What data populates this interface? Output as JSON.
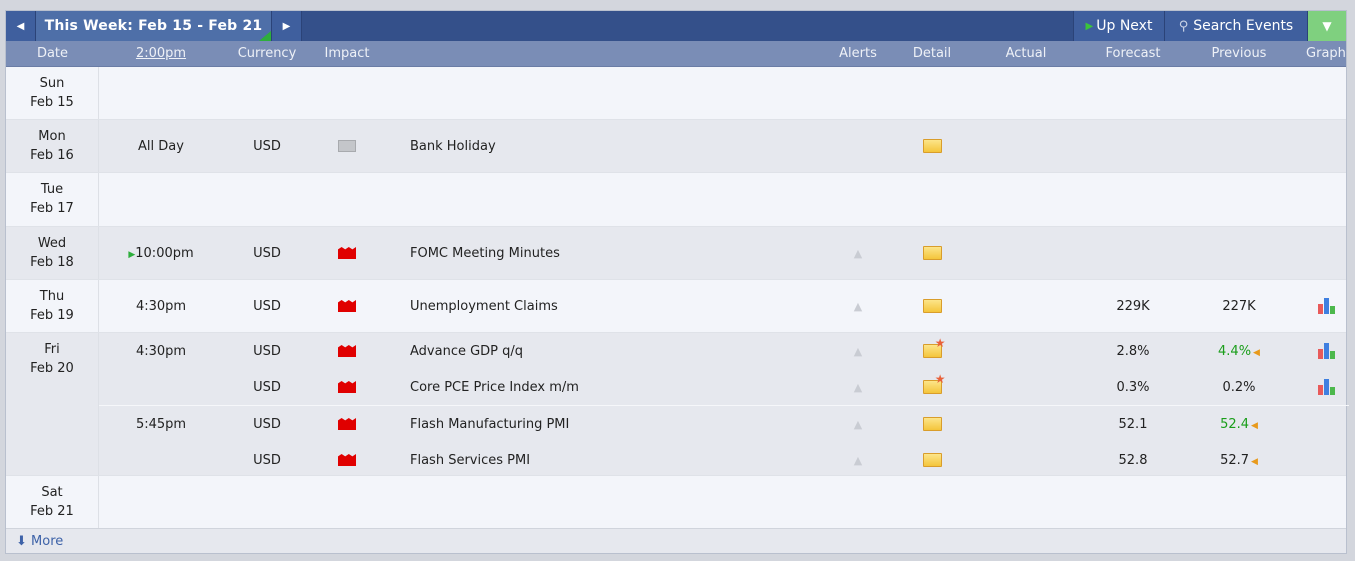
{
  "toolbar": {
    "week_label": "This Week: Feb 15 - Feb 21",
    "up_next": "Up Next",
    "search": "Search Events",
    "prev_icon": "triangle-left",
    "next_icon": "triangle-right",
    "filter_icon": "funnel"
  },
  "columns": [
    "Date",
    "2:00pm",
    "Currency",
    "Impact",
    "",
    "Alerts",
    "Detail",
    "Actual",
    "Forecast",
    "Previous",
    "Graph"
  ],
  "days": [
    {
      "dow": "Sun",
      "date": "Feb 15",
      "events": []
    },
    {
      "dow": "Mon",
      "date": "Feb 16",
      "events": [
        {
          "time": "All Day",
          "currency": "USD",
          "impact": "gray",
          "event": "Bank Holiday",
          "alert": false,
          "detail": "folder",
          "actual": "",
          "forecast": "",
          "previous": "",
          "prev_status": "",
          "graph": false
        }
      ]
    },
    {
      "dow": "Tue",
      "date": "Feb 17",
      "events": []
    },
    {
      "dow": "Wed",
      "date": "Feb 18",
      "events": [
        {
          "time": "10:00pm",
          "upnext": true,
          "currency": "USD",
          "impact": "red",
          "event": "FOMC Meeting Minutes",
          "alert": true,
          "detail": "folder",
          "actual": "",
          "forecast": "",
          "previous": "",
          "prev_status": "",
          "graph": false
        }
      ]
    },
    {
      "dow": "Thu",
      "date": "Feb 19",
      "events": [
        {
          "time": "4:30pm",
          "currency": "USD",
          "impact": "red",
          "event": "Unemployment Claims",
          "alert": true,
          "detail": "folder",
          "actual": "",
          "forecast": "229K",
          "previous": "227K",
          "prev_status": "",
          "graph": true
        }
      ]
    },
    {
      "dow": "Fri",
      "date": "Feb 20",
      "events": [
        {
          "time": "4:30pm",
          "currency": "USD",
          "impact": "red",
          "event": "Advance GDP q/q",
          "alert": true,
          "detail": "folder-star",
          "actual": "",
          "forecast": "2.8%",
          "previous": "4.4%",
          "prev_status": "revised-up",
          "graph": true
        },
        {
          "time": "",
          "currency": "USD",
          "impact": "red",
          "event": "Core PCE Price Index m/m",
          "alert": true,
          "detail": "folder-star",
          "actual": "",
          "forecast": "0.3%",
          "previous": "0.2%",
          "prev_status": "",
          "graph": true
        },
        {
          "time": "5:45pm",
          "currency": "USD",
          "impact": "red",
          "event": "Flash Manufacturing PMI",
          "alert": true,
          "detail": "folder",
          "actual": "",
          "forecast": "52.1",
          "previous": "52.4",
          "prev_status": "revised-up",
          "graph": false,
          "sep": true
        },
        {
          "time": "",
          "currency": "USD",
          "impact": "red",
          "event": "Flash Services PMI",
          "alert": true,
          "detail": "folder",
          "actual": "",
          "forecast": "52.8",
          "previous": "52.7",
          "prev_status": "revised",
          "graph": false
        }
      ]
    },
    {
      "dow": "Sat",
      "date": "Feb 21",
      "events": []
    }
  ],
  "footer": {
    "more": "More"
  },
  "colors": {
    "topbar": "#34508a",
    "header": "#7a8db6",
    "high_impact": "#e00000",
    "revised_up": "#1a9e1a",
    "filter": "#7fd07f"
  }
}
